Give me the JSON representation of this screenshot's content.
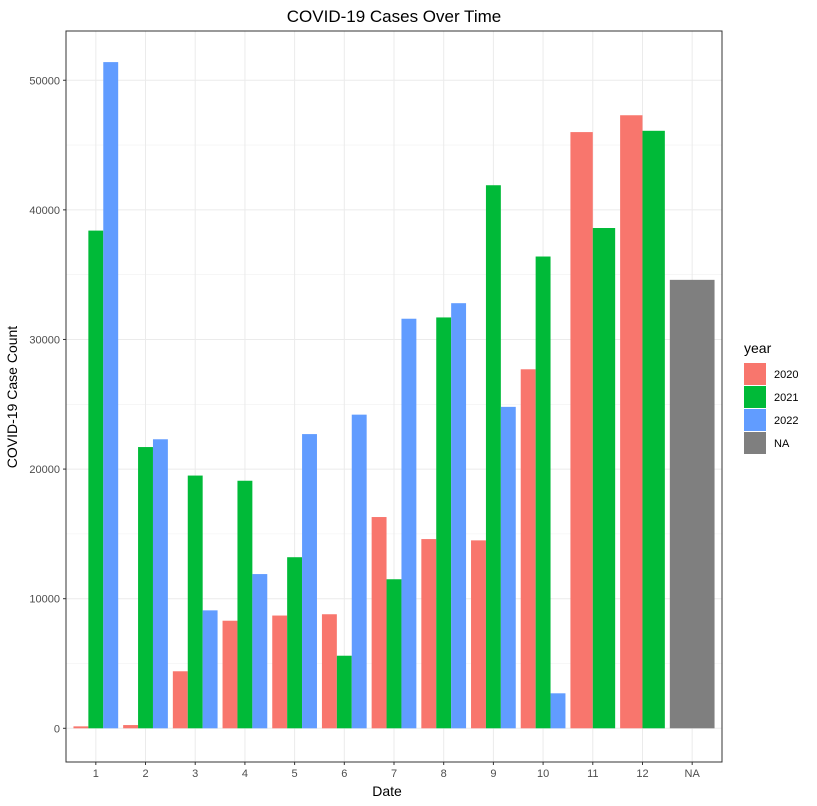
{
  "chart_data": {
    "type": "bar",
    "title": "COVID-19 Cases Over Time",
    "xlabel": "Date",
    "ylabel": "COVID-19 Case Count",
    "ylim": [
      -2600,
      53800
    ],
    "yticks": [
      0,
      10000,
      20000,
      30000,
      40000,
      50000
    ],
    "grid": true,
    "categories": [
      "1",
      "2",
      "3",
      "4",
      "5",
      "6",
      "7",
      "8",
      "9",
      "10",
      "11",
      "12",
      "NA"
    ],
    "legend": {
      "title": "year",
      "position": "right",
      "entries": [
        {
          "label": "2020",
          "color": "#F8766D"
        },
        {
          "label": "2021",
          "color": "#00BA38"
        },
        {
          "label": "2022",
          "color": "#619CFF"
        },
        {
          "label": "NA",
          "color": "#7F7F7F"
        }
      ]
    },
    "bars": [
      {
        "category": "1",
        "year": "2020",
        "value": 150
      },
      {
        "category": "1",
        "year": "2021",
        "value": 38400
      },
      {
        "category": "1",
        "year": "2022",
        "value": 51400
      },
      {
        "category": "2",
        "year": "2020",
        "value": 250
      },
      {
        "category": "2",
        "year": "2021",
        "value": 21700
      },
      {
        "category": "2",
        "year": "2022",
        "value": 22300
      },
      {
        "category": "3",
        "year": "2020",
        "value": 4400
      },
      {
        "category": "3",
        "year": "2021",
        "value": 19500
      },
      {
        "category": "3",
        "year": "2022",
        "value": 9100
      },
      {
        "category": "4",
        "year": "2020",
        "value": 8300
      },
      {
        "category": "4",
        "year": "2021",
        "value": 19100
      },
      {
        "category": "4",
        "year": "2022",
        "value": 11900
      },
      {
        "category": "5",
        "year": "2020",
        "value": 8700
      },
      {
        "category": "5",
        "year": "2021",
        "value": 13200
      },
      {
        "category": "5",
        "year": "2022",
        "value": 22700
      },
      {
        "category": "6",
        "year": "2020",
        "value": 8800
      },
      {
        "category": "6",
        "year": "2021",
        "value": 5600
      },
      {
        "category": "6",
        "year": "2022",
        "value": 24200
      },
      {
        "category": "7",
        "year": "2020",
        "value": 16300
      },
      {
        "category": "7",
        "year": "2021",
        "value": 11500
      },
      {
        "category": "7",
        "year": "2022",
        "value": 31600
      },
      {
        "category": "8",
        "year": "2020",
        "value": 14600
      },
      {
        "category": "8",
        "year": "2021",
        "value": 31700
      },
      {
        "category": "8",
        "year": "2022",
        "value": 32800
      },
      {
        "category": "9",
        "year": "2020",
        "value": 14500
      },
      {
        "category": "9",
        "year": "2021",
        "value": 41900
      },
      {
        "category": "9",
        "year": "2022",
        "value": 24800
      },
      {
        "category": "10",
        "year": "2020",
        "value": 27700
      },
      {
        "category": "10",
        "year": "2021",
        "value": 36400
      },
      {
        "category": "10",
        "year": "2022",
        "value": 2700
      },
      {
        "category": "11",
        "year": "2020",
        "value": 46000
      },
      {
        "category": "11",
        "year": "2021",
        "value": 38600
      },
      {
        "category": "12",
        "year": "2020",
        "value": 47300
      },
      {
        "category": "12",
        "year": "2021",
        "value": 46100
      },
      {
        "category": "NA",
        "year": "NA",
        "value": 34600
      }
    ]
  }
}
